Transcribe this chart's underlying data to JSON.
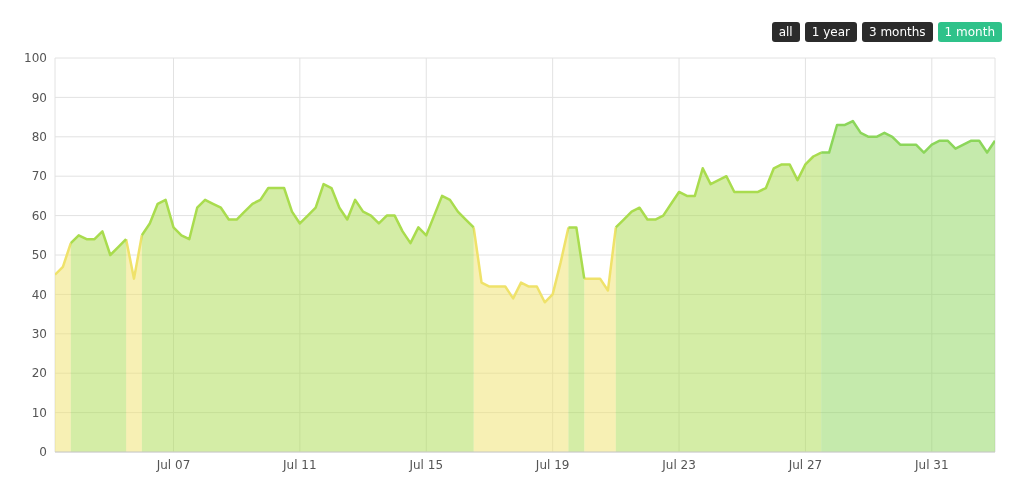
{
  "chart_data": {
    "type": "area",
    "categories": [
      null,
      null,
      null,
      null,
      null,
      null,
      null,
      null,
      null,
      null,
      null,
      null,
      null,
      null,
      null,
      "Jul 07",
      null,
      null,
      null,
      null,
      null,
      null,
      null,
      null,
      null,
      null,
      null,
      null,
      null,
      null,
      null,
      "Jul 11",
      null,
      null,
      null,
      null,
      null,
      null,
      null,
      null,
      null,
      null,
      null,
      null,
      null,
      null,
      null,
      "Jul 15",
      null,
      null,
      null,
      null,
      null,
      null,
      null,
      null,
      null,
      null,
      null,
      null,
      null,
      null,
      null,
      "Jul 19",
      null,
      null,
      null,
      null,
      null,
      null,
      null,
      null,
      null,
      null,
      null,
      null,
      null,
      null,
      null,
      "Jul 23",
      null,
      null,
      null,
      null,
      null,
      null,
      null,
      null,
      null,
      null,
      null,
      null,
      null,
      null,
      null,
      "Jul 27",
      null,
      null,
      null,
      null,
      null,
      null,
      null,
      null,
      null,
      null,
      null,
      null,
      null,
      null,
      null,
      "Jul 31",
      null,
      null,
      null,
      null,
      null,
      null,
      null,
      null
    ],
    "series": [
      {
        "color": "#efe26a",
        "values": [
          45,
          47,
          53,
          null,
          null,
          null,
          null,
          null,
          null,
          54,
          44,
          55,
          null,
          null,
          null,
          null,
          null,
          null,
          null,
          null,
          null,
          null,
          null,
          null,
          null,
          null,
          null,
          null,
          null,
          null,
          null,
          null,
          null,
          null,
          null,
          null,
          null,
          null,
          null,
          null,
          null,
          null,
          null,
          null,
          null,
          null,
          null,
          null,
          null,
          null,
          null,
          null,
          null,
          57,
          43,
          42,
          42,
          42,
          39,
          43,
          42,
          42,
          38,
          40,
          48,
          57,
          null,
          44,
          44,
          44,
          41,
          57,
          null,
          null,
          null,
          null,
          null,
          null,
          null,
          null,
          null,
          null,
          null,
          null,
          null,
          null,
          null,
          null,
          null,
          null,
          null,
          null,
          null,
          null,
          null,
          null,
          null,
          null,
          null,
          null,
          null,
          null,
          null,
          null,
          null,
          null,
          null,
          null,
          null,
          null,
          null,
          null,
          null,
          null,
          null,
          null,
          null,
          null,
          null,
          null
        ]
      },
      {
        "color": "#a9dc4e",
        "values": [
          null,
          null,
          53,
          55,
          54,
          54,
          56,
          50,
          52,
          54,
          null,
          55,
          58,
          63,
          64,
          57,
          55,
          54,
          62,
          64,
          63,
          62,
          59,
          59,
          61,
          63,
          64,
          67,
          67,
          67,
          61,
          58,
          60,
          62,
          68,
          67,
          62,
          59,
          64,
          61,
          60,
          58,
          60,
          60,
          56,
          53,
          57,
          55,
          60,
          65,
          64,
          61,
          59,
          57,
          null,
          null,
          null,
          null,
          null,
          null,
          null,
          null,
          null,
          null,
          null,
          57,
          57,
          44,
          null,
          null,
          null,
          57,
          59,
          61,
          62,
          59,
          59,
          60,
          63,
          66,
          65,
          65,
          72,
          68,
          69,
          70,
          66,
          66,
          66,
          66,
          67,
          72,
          73,
          73,
          69,
          73,
          75,
          76,
          null,
          null,
          null,
          null,
          null,
          null,
          null,
          null,
          null,
          null,
          null,
          null,
          null,
          null,
          null,
          null,
          null,
          null,
          null,
          null,
          null,
          null
        ]
      },
      {
        "color": "#8cd65a",
        "values": [
          null,
          null,
          null,
          null,
          null,
          null,
          null,
          null,
          null,
          null,
          null,
          null,
          null,
          null,
          null,
          null,
          null,
          null,
          null,
          null,
          null,
          null,
          null,
          null,
          null,
          null,
          null,
          null,
          null,
          null,
          null,
          null,
          null,
          null,
          null,
          null,
          null,
          null,
          null,
          null,
          null,
          null,
          null,
          null,
          null,
          null,
          null,
          null,
          null,
          null,
          null,
          null,
          null,
          null,
          null,
          null,
          null,
          null,
          null,
          null,
          null,
          null,
          null,
          null,
          null,
          null,
          null,
          null,
          null,
          null,
          null,
          null,
          null,
          null,
          null,
          null,
          null,
          null,
          null,
          null,
          null,
          null,
          null,
          null,
          null,
          null,
          null,
          null,
          null,
          null,
          null,
          null,
          null,
          null,
          null,
          null,
          null,
          76,
          76,
          83,
          83,
          84,
          81,
          80,
          80,
          81,
          80,
          78,
          78,
          78,
          76,
          78,
          79,
          79,
          77,
          78,
          79,
          79,
          76,
          79
        ]
      }
    ],
    "ylim": [
      0,
      100
    ],
    "yticks": [
      0,
      10,
      20,
      30,
      40,
      50,
      60,
      70,
      80,
      90,
      100
    ],
    "grid": true,
    "annotations": [
      "all",
      "1 year",
      "3 months",
      "1 month"
    ]
  }
}
